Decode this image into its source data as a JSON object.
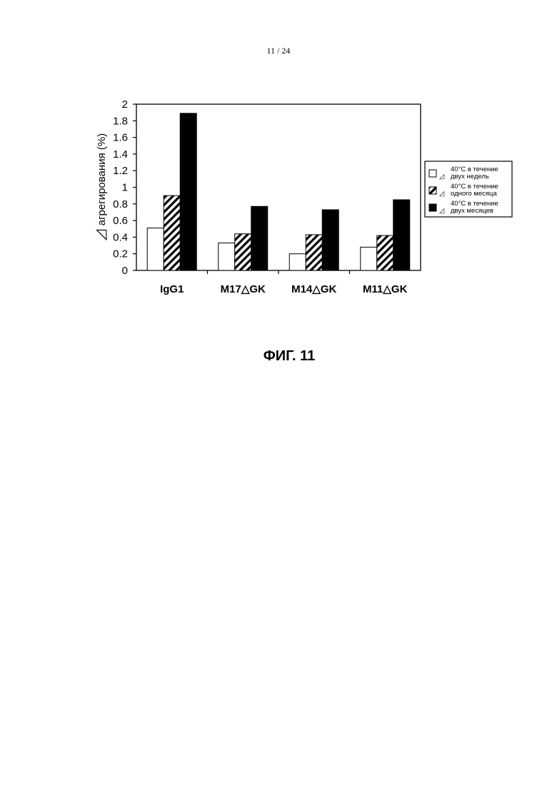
{
  "page": {
    "number": "11 / 24"
  },
  "figure": {
    "caption": "ФИГ. 11"
  },
  "chart_data": {
    "type": "bar",
    "title": "",
    "ylabel": "агрегирования (%)",
    "xlabel": "",
    "ylim": [
      0,
      2
    ],
    "yticks": [
      "0",
      "0.2",
      "0.4",
      "0.6",
      "0.8",
      "1",
      "1.2",
      "1.4",
      "1.6",
      "1.8",
      "2"
    ],
    "categories": [
      "IgG1",
      "M17△GK",
      "M14△GK",
      "M11△GK"
    ],
    "legend_position": "right",
    "grid": false,
    "series": [
      {
        "name": "40°C в течение двух недель",
        "fill": "white",
        "values": [
          0.51,
          0.33,
          0.2,
          0.28
        ]
      },
      {
        "name": "40°C в течение одного месяца",
        "fill": "hatched",
        "values": [
          0.9,
          0.44,
          0.43,
          0.42
        ]
      },
      {
        "name": "40°C в течение двух месяцев",
        "fill": "black",
        "values": [
          1.89,
          0.77,
          0.73,
          0.85
        ]
      }
    ]
  }
}
